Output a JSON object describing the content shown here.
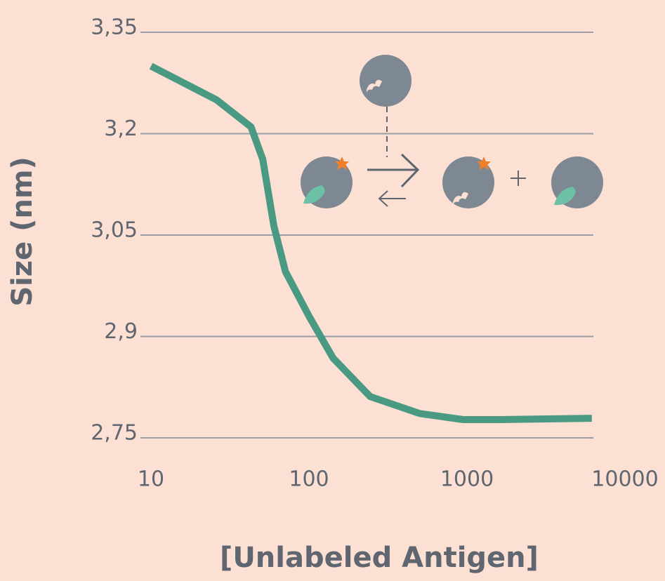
{
  "chart_data": {
    "type": "line",
    "y_label": "Size (nm)",
    "x_label": "[Unlabeled Antigen]",
    "x_scale": "log",
    "xlim": [
      10,
      10000
    ],
    "xticks": [
      10,
      100,
      1000,
      10000
    ],
    "ylim": [
      2.75,
      3.35
    ],
    "yticks": [
      {
        "value": 2.75,
        "label": "2,75"
      },
      {
        "value": 2.9,
        "label": "2,9"
      },
      {
        "value": 3.05,
        "label": "3,05"
      },
      {
        "value": 3.2,
        "label": "3,2"
      },
      {
        "value": 3.35,
        "label": "3,35"
      }
    ],
    "grid": true,
    "series": [
      {
        "color": "#4a9a83",
        "x": [
          10,
          26,
          43,
          51,
          60,
          71,
          100,
          142,
          244,
          502,
          946,
          1606,
          6170
        ],
        "values": [
          3.3,
          3.25,
          3.21,
          3.162,
          3.063,
          2.996,
          2.93,
          2.868,
          2.811,
          2.786,
          2.777,
          2.777,
          2.779
        ]
      }
    ]
  }
}
